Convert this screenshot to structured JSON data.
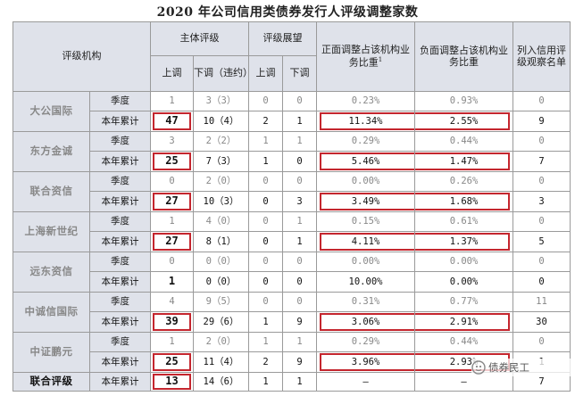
{
  "title": "2020 年公司信用类债券发行人评级调整家数",
  "header": {
    "agency": "评级机构",
    "main_rating": "主体评级",
    "outlook": "评级展望",
    "positive_ratio": "正面调整占该机构业务比重",
    "positive_sup": "1",
    "negative_ratio": "负面调整占该机构业务比重",
    "watchlist": "列入信用评级观察名单",
    "up": "上调",
    "down": "下调（违约）",
    "outlook_up": "上调",
    "outlook_down": "下调"
  },
  "period_labels": {
    "quarter": "季度",
    "ytd": "本年累计"
  },
  "agencies": [
    {
      "name": "大公国际",
      "quarter": {
        "up": "1",
        "down": "3（3）",
        "o_up": "0",
        "o_down": "0",
        "pos": "0.23%",
        "neg": "0.93%",
        "watch": "0"
      },
      "ytd": {
        "up": "47",
        "down": "10（4）",
        "o_up": "2",
        "o_down": "1",
        "pos": "11.34%",
        "neg": "2.55%",
        "watch": "9"
      }
    },
    {
      "name": "东方金诚",
      "quarter": {
        "up": "3",
        "down": "2（2）",
        "o_up": "1",
        "o_down": "1",
        "pos": "0.29%",
        "neg": "0.44%",
        "watch": "0"
      },
      "ytd": {
        "up": "25",
        "down": "7（3）",
        "o_up": "1",
        "o_down": "0",
        "pos": "5.46%",
        "neg": "1.47%",
        "watch": "7"
      }
    },
    {
      "name": "联合资信",
      "quarter": {
        "up": "0",
        "down": "2（0）",
        "o_up": "0",
        "o_down": "0",
        "pos": "0.00%",
        "neg": "0.26%",
        "watch": "0"
      },
      "ytd": {
        "up": "27",
        "down": "10（3）",
        "o_up": "0",
        "o_down": "3",
        "pos": "3.49%",
        "neg": "1.68%",
        "watch": "3"
      }
    },
    {
      "name": "上海新世纪",
      "quarter": {
        "up": "1",
        "down": "4（0）",
        "o_up": "0",
        "o_down": "1",
        "pos": "0.15%",
        "neg": "0.61%",
        "watch": "0"
      },
      "ytd": {
        "up": "27",
        "down": "8（1）",
        "o_up": "0",
        "o_down": "1",
        "pos": "4.11%",
        "neg": "1.37%",
        "watch": "5"
      }
    },
    {
      "name": "远东资信",
      "quarter": {
        "up": "0",
        "down": "0（0）",
        "o_up": "0",
        "o_down": "0",
        "pos": "0.00%",
        "neg": "0.00%",
        "watch": "0"
      },
      "ytd": {
        "up": "1",
        "down": "0（0）",
        "o_up": "0",
        "o_down": "0",
        "pos": "10.00%",
        "neg": "0.00%",
        "watch": "0"
      }
    },
    {
      "name": "中诚信国际",
      "quarter": {
        "up": "4",
        "down": "9（5）",
        "o_up": "0",
        "o_down": "0",
        "pos": "0.31%",
        "neg": "0.77%",
        "watch": "11"
      },
      "ytd": {
        "up": "39",
        "down": "29（6）",
        "o_up": "1",
        "o_down": "9",
        "pos": "3.06%",
        "neg": "2.91%",
        "watch": "30"
      }
    },
    {
      "name": "中证鹏元",
      "quarter": {
        "up": "1",
        "down": "2（0）",
        "o_up": "1",
        "o_down": "1",
        "pos": "0.29%",
        "neg": "0.44%",
        "watch": "0"
      },
      "ytd": {
        "up": "25",
        "down": "11（4）",
        "o_up": "2",
        "o_down": "9",
        "pos": "3.96%",
        "neg": "2.93%",
        "watch": "1"
      }
    }
  ],
  "last_row": {
    "name": "联合评级",
    "label": "本年累计",
    "up": "13",
    "down": "14（6）",
    "o_up": "1",
    "o_down": "1",
    "pos": "–",
    "neg": "–",
    "watch": "7"
  },
  "watermark": "债券民工",
  "colors": {
    "header_bg": "#dfe2ea",
    "highlight": "#c4262e",
    "border": "#9a9a9a"
  }
}
